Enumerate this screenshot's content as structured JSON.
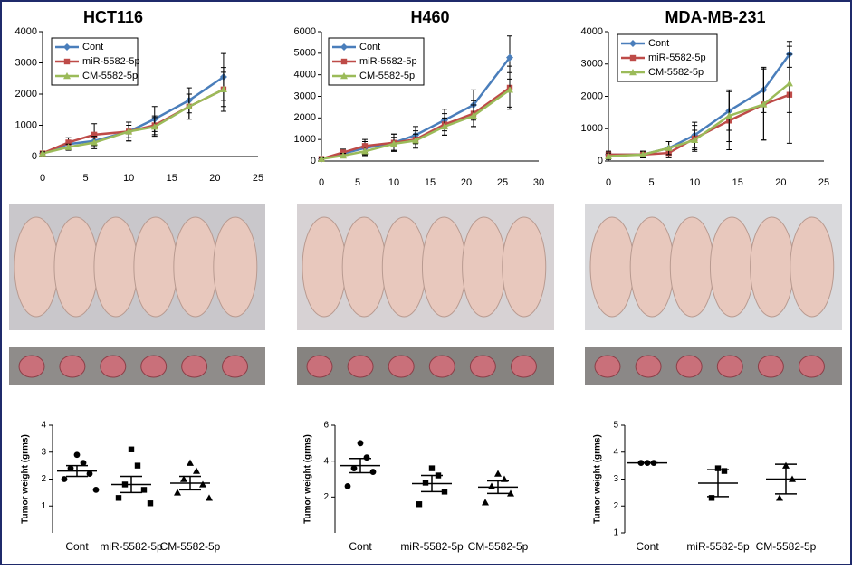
{
  "chart_data": [
    {
      "type": "line",
      "title": "HCT116",
      "x": [
        0,
        3,
        6,
        10,
        13,
        17,
        21
      ],
      "xlim": [
        0,
        25
      ],
      "xticks": [
        0,
        5,
        10,
        15,
        20,
        25
      ],
      "ylim": [
        0,
        4000
      ],
      "yticks": [
        0,
        1000,
        2000,
        3000,
        4000
      ],
      "series": [
        {
          "name": "Cont",
          "color": "#4a7ebb",
          "marker": "diamond",
          "values": [
            100,
            400,
            500,
            800,
            1200,
            1800,
            2550
          ],
          "errors": [
            50,
            100,
            150,
            300,
            400,
            400,
            750
          ]
        },
        {
          "name": "miR-5582-5p",
          "color": "#be4b48",
          "marker": "square",
          "values": [
            100,
            450,
            700,
            800,
            1000,
            1600,
            2150
          ],
          "errors": [
            50,
            150,
            350,
            300,
            300,
            400,
            700
          ]
        },
        {
          "name": "CM-5582-5p",
          "color": "#9bbb59",
          "marker": "triangle",
          "values": [
            100,
            300,
            450,
            800,
            950,
            1600,
            2150
          ],
          "errors": [
            50,
            100,
            200,
            200,
            300,
            400,
            550
          ]
        }
      ]
    },
    {
      "type": "line",
      "title": "H460",
      "x": [
        0,
        3,
        6,
        10,
        13,
        17,
        21,
        26
      ],
      "xlim": [
        0,
        30
      ],
      "xticks": [
        0,
        5,
        10,
        15,
        20,
        25,
        30
      ],
      "ylim": [
        0,
        6000
      ],
      "yticks": [
        0,
        1000,
        2000,
        3000,
        4000,
        5000,
        6000
      ],
      "series": [
        {
          "name": "Cont",
          "color": "#4a7ebb",
          "marker": "diamond",
          "values": [
            100,
            350,
            600,
            850,
            1200,
            1900,
            2600,
            4800
          ],
          "errors": [
            50,
            150,
            300,
            400,
            400,
            500,
            700,
            1000
          ]
        },
        {
          "name": "miR-5582-5p",
          "color": "#be4b48",
          "marker": "square",
          "values": [
            100,
            400,
            700,
            850,
            1000,
            1700,
            2200,
            3400
          ],
          "errors": [
            50,
            150,
            300,
            400,
            400,
            500,
            600,
            1000
          ]
        },
        {
          "name": "CM-5582-5p",
          "color": "#9bbb59",
          "marker": "triangle",
          "values": [
            100,
            250,
            450,
            800,
            950,
            1600,
            2100,
            3300
          ],
          "errors": [
            50,
            100,
            200,
            300,
            300,
            400,
            500,
            800
          ]
        }
      ]
    },
    {
      "type": "line",
      "title": "MDA-MB-231",
      "x": [
        0,
        4,
        7,
        10,
        14,
        18,
        21
      ],
      "xlim": [
        0,
        25
      ],
      "xticks": [
        0,
        5,
        10,
        15,
        20,
        25
      ],
      "ylim": [
        0,
        4000
      ],
      "yticks": [
        0,
        1000,
        2000,
        3000,
        4000
      ],
      "series": [
        {
          "name": "Cont",
          "color": "#4a7ebb",
          "marker": "diamond",
          "values": [
            200,
            200,
            400,
            800,
            1550,
            2200,
            3300
          ],
          "errors": [
            100,
            100,
            200,
            400,
            600,
            700,
            400
          ]
        },
        {
          "name": "miR-5582-5p",
          "color": "#be4b48",
          "marker": "square",
          "values": [
            200,
            200,
            250,
            700,
            1250,
            1750,
            2050
          ],
          "errors": [
            100,
            100,
            150,
            400,
            900,
            1100,
            1500
          ]
        },
        {
          "name": "CM-5582-5p",
          "color": "#9bbb59",
          "marker": "triangle",
          "values": [
            150,
            200,
            400,
            650,
            1400,
            1750,
            2400
          ],
          "errors": [
            100,
            100,
            200,
            300,
            800,
            1100,
            900
          ]
        }
      ]
    },
    {
      "type": "dot",
      "y_label": "Tumor weight (grms)",
      "categories": [
        "Cont",
        "miR-5582-5p",
        "CM-5582-5p"
      ],
      "markers": [
        "circle",
        "square",
        "triangle"
      ],
      "ylim": [
        0,
        4
      ],
      "yticks": [
        1,
        2,
        3,
        4
      ],
      "values": [
        [
          2.9,
          2.6,
          2.4,
          2.2,
          2.0,
          1.6
        ],
        [
          3.1,
          2.5,
          1.8,
          1.6,
          1.3,
          1.1
        ],
        [
          2.6,
          2.3,
          2.0,
          1.8,
          1.5,
          1.3
        ]
      ],
      "means": [
        2.3,
        1.8,
        1.85
      ],
      "sem": [
        0.2,
        0.3,
        0.25
      ]
    },
    {
      "type": "dot",
      "y_label": "Tumor weight (grms)",
      "categories": [
        "Cont",
        "miR-5582-5p",
        "CM-5582-5p"
      ],
      "markers": [
        "circle",
        "square",
        "triangle"
      ],
      "ylim": [
        0,
        6
      ],
      "yticks": [
        2,
        4,
        6
      ],
      "values": [
        [
          5.0,
          4.2,
          3.6,
          3.4,
          2.6
        ],
        [
          3.6,
          3.2,
          2.8,
          2.3,
          1.6
        ],
        [
          3.3,
          3.0,
          2.6,
          2.2,
          1.7
        ]
      ],
      "means": [
        3.75,
        2.75,
        2.55
      ],
      "sem": [
        0.4,
        0.45,
        0.35
      ]
    },
    {
      "type": "dot",
      "y_label": "Tumor weight (grms)",
      "categories": [
        "Cont",
        "miR-5582-5p",
        "CM-5582-5p"
      ],
      "markers": [
        "circle",
        "square",
        "triangle"
      ],
      "ylim": [
        1,
        5
      ],
      "yticks": [
        1,
        2,
        3,
        4,
        5
      ],
      "values": [
        [
          3.6,
          3.6,
          3.6
        ],
        [
          3.4,
          3.3,
          2.3
        ],
        [
          3.5,
          3.0,
          2.3
        ]
      ],
      "means": [
        3.6,
        2.85,
        3.0
      ],
      "sem": [
        0.0,
        0.5,
        0.55
      ]
    }
  ]
}
